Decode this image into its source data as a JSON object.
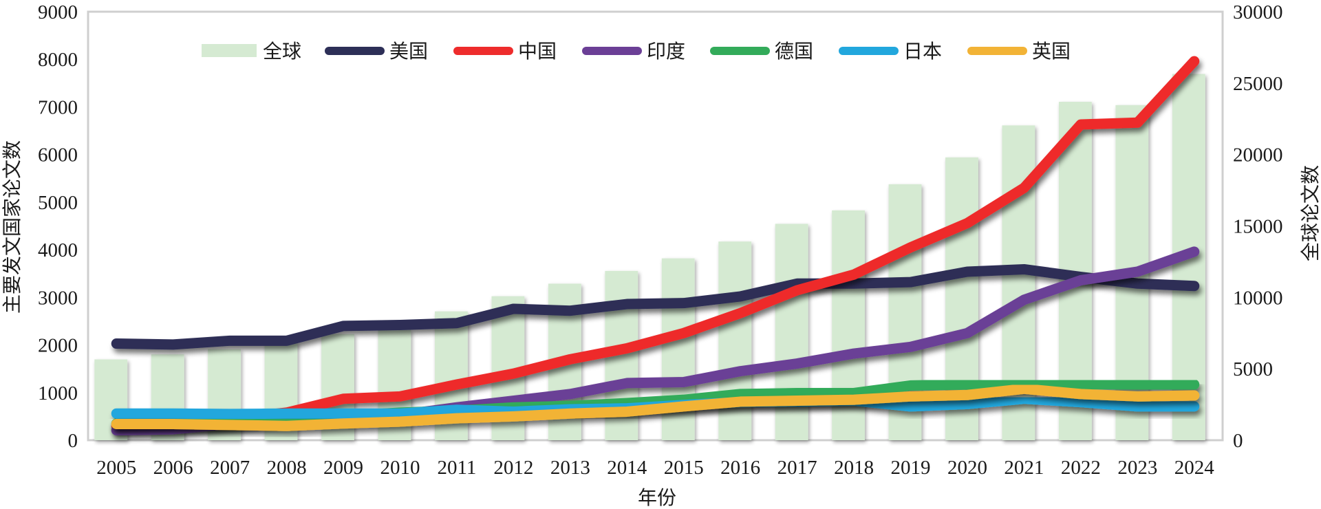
{
  "chart_data": {
    "type": "bar+line",
    "title": "",
    "xlabel": "年份",
    "ylabel_left": "主要发文国家论文数",
    "ylabel_right": "全球论文数",
    "ylim_left": [
      0,
      9000
    ],
    "ylim_right": [
      0,
      30000
    ],
    "yticks_left": [
      "0",
      "1000",
      "2000",
      "3000",
      "4000",
      "5000",
      "6000",
      "7000",
      "8000",
      "9000"
    ],
    "yticks_right": [
      "0",
      "5000",
      "10000",
      "15000",
      "20000",
      "25000",
      "30000"
    ],
    "legend_position": "top-center",
    "grid": false,
    "categories": [
      "2005",
      "2006",
      "2007",
      "2008",
      "2009",
      "2010",
      "2011",
      "2012",
      "2013",
      "2014",
      "2015",
      "2016",
      "2017",
      "2018",
      "2019",
      "2020",
      "2021",
      "2022",
      "2023",
      "2024"
    ],
    "bars": {
      "name": "全球",
      "axis": "right",
      "color": "#d5ead2",
      "values": [
        5660,
        6010,
        6370,
        6840,
        7430,
        7720,
        9020,
        10080,
        10960,
        11850,
        12730,
        13910,
        15150,
        16090,
        17920,
        19800,
        22040,
        23690,
        23460,
        25640
      ]
    },
    "series": [
      {
        "name": "美国",
        "axis": "left",
        "color": "#2d2f57",
        "values": [
          2030,
          2010,
          2090,
          2090,
          2400,
          2420,
          2460,
          2760,
          2720,
          2860,
          2880,
          3020,
          3290,
          3290,
          3320,
          3540,
          3590,
          3430,
          3290,
          3240
        ]
      },
      {
        "name": "中国",
        "axis": "left",
        "color": "#ee2c2c",
        "values": [
          300,
          350,
          450,
          580,
          870,
          920,
          1170,
          1400,
          1700,
          1930,
          2250,
          2670,
          3150,
          3480,
          4050,
          4560,
          5300,
          6630,
          6670,
          7960
        ]
      },
      {
        "name": "印度",
        "axis": "left",
        "color": "#6b3f96",
        "values": [
          210,
          230,
          340,
          460,
          500,
          530,
          690,
          830,
          970,
          1200,
          1220,
          1450,
          1610,
          1820,
          1960,
          2250,
          2950,
          3360,
          3540,
          3960
        ]
      },
      {
        "name": "德国",
        "axis": "left",
        "color": "#33ab5a",
        "values": [
          350,
          390,
          410,
          460,
          510,
          580,
          620,
          690,
          720,
          780,
          850,
          970,
          990,
          990,
          1150,
          1170,
          1180,
          1180,
          1170,
          1170
        ]
      },
      {
        "name": "日本",
        "axis": "left",
        "color": "#22a7dd",
        "values": [
          560,
          560,
          550,
          560,
          560,
          560,
          640,
          600,
          650,
          670,
          740,
          800,
          810,
          830,
          710,
          760,
          870,
          800,
          710,
          710
        ]
      },
      {
        "name": "英国",
        "axis": "left",
        "color": "#f2b336",
        "values": [
          340,
          340,
          320,
          300,
          350,
          390,
          460,
          500,
          560,
          600,
          710,
          810,
          830,
          850,
          920,
          950,
          1080,
          970,
          920,
          940
        ]
      }
    ]
  }
}
